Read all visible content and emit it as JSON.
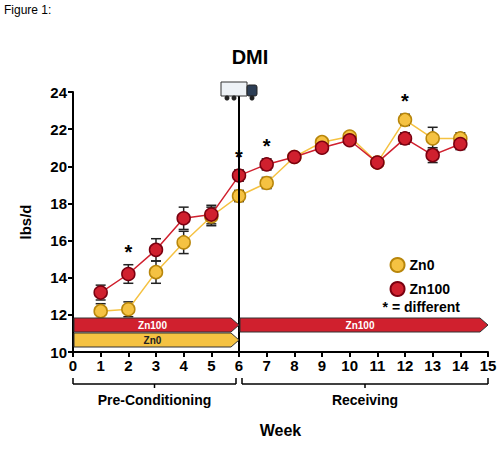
{
  "chart_data": {
    "type": "line",
    "figure_label": "Figure 1:",
    "title": "DMI",
    "x_label": "Week",
    "y_label": "lbs/d",
    "x": [
      1,
      2,
      3,
      4,
      5,
      6,
      7,
      8,
      9,
      10,
      11,
      12,
      13,
      14
    ],
    "series": [
      {
        "name": "Zn0",
        "color": "#f5c242",
        "marker": "circle",
        "values": [
          12.2,
          12.3,
          14.3,
          15.9,
          17.3,
          18.4,
          19.1,
          20.5,
          21.3,
          21.6,
          20.2,
          22.5,
          21.5,
          21.5
        ],
        "errors": [
          0.4,
          0.4,
          0.6,
          0.6,
          0.5,
          0.3,
          0.3,
          0.2,
          0.2,
          0.2,
          0.2,
          0.3,
          0.6,
          0.3
        ]
      },
      {
        "name": "Zn100",
        "color": "#d0202e",
        "marker": "circle",
        "values": [
          13.2,
          14.2,
          15.5,
          17.2,
          17.4,
          19.5,
          20.1,
          20.5,
          21.0,
          21.4,
          20.2,
          21.5,
          20.6,
          21.2
        ],
        "errors": [
          0.4,
          0.5,
          0.6,
          0.6,
          0.5,
          0.3,
          0.3,
          0.2,
          0.2,
          0.2,
          0.2,
          0.3,
          0.4,
          0.3
        ]
      }
    ],
    "xlim": [
      0,
      15
    ],
    "xticks": [
      0,
      1,
      2,
      3,
      4,
      5,
      6,
      7,
      8,
      9,
      10,
      11,
      12,
      13,
      14,
      15
    ],
    "ylim": [
      10,
      24
    ],
    "yticks": [
      10,
      12,
      14,
      16,
      18,
      20,
      22,
      24
    ],
    "grid": false,
    "legend": "right",
    "legend_note": "* = different",
    "annotations": [
      {
        "text": "*",
        "x": 2
      },
      {
        "text": "*",
        "x": 6
      },
      {
        "text": "*",
        "x": 7
      },
      {
        "text": "*",
        "x": 12
      }
    ],
    "shipping_week": 6,
    "treatments": [
      {
        "label": "Zn100",
        "start": 0,
        "end": 6,
        "color": "#d0202e"
      },
      {
        "label": "Zn0",
        "start": 0,
        "end": 6,
        "color": "#f5c242"
      },
      {
        "label": "Zn100",
        "start": 6,
        "end": 15,
        "color": "#d0202e"
      }
    ],
    "phases": [
      {
        "label": "Pre-Conditioning",
        "start": 0,
        "end": 6
      },
      {
        "label": "Receiving",
        "start": 6,
        "end": 15
      }
    ]
  }
}
